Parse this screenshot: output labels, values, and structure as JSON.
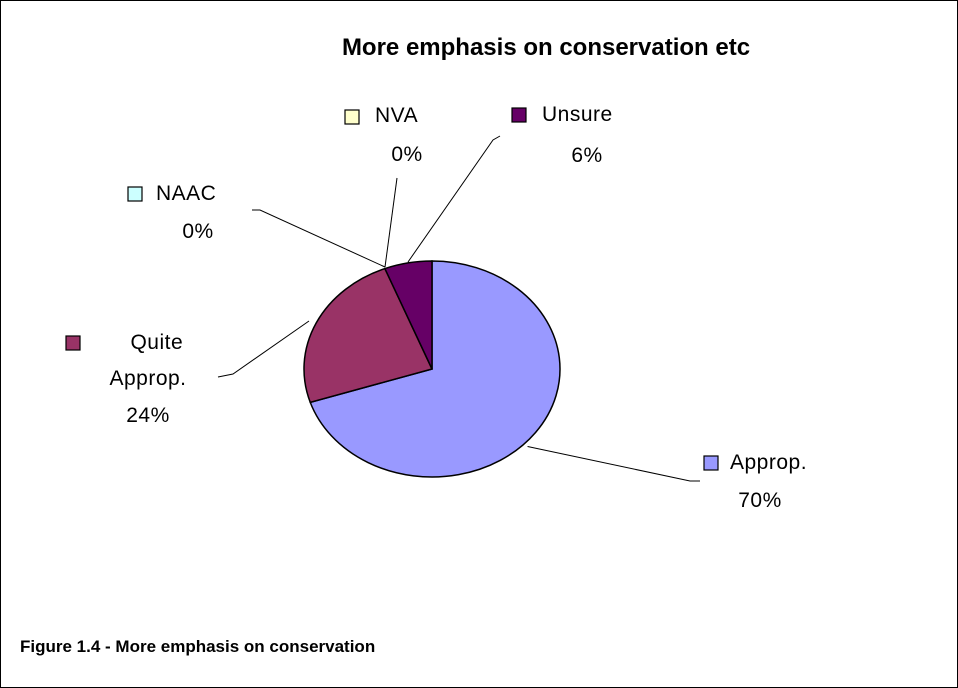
{
  "chart_data": {
    "type": "pie",
    "title": "More emphasis on conservation etc",
    "categories": [
      "Approp.",
      "Quite Approp.",
      "NAAC",
      "NVA",
      "Unsure"
    ],
    "values": [
      70,
      24,
      0,
      0,
      6
    ],
    "value_labels": [
      "70%",
      "24%",
      "0%",
      "0%",
      "6%"
    ],
    "colors": [
      "#9999FF",
      "#993366",
      "#CCFFFF",
      "#FFFFCC",
      "#660066"
    ],
    "legend": "labels beside slices with leader lines"
  },
  "figure": {
    "caption": "Figure 1.4 - More emphasis on conservation"
  }
}
